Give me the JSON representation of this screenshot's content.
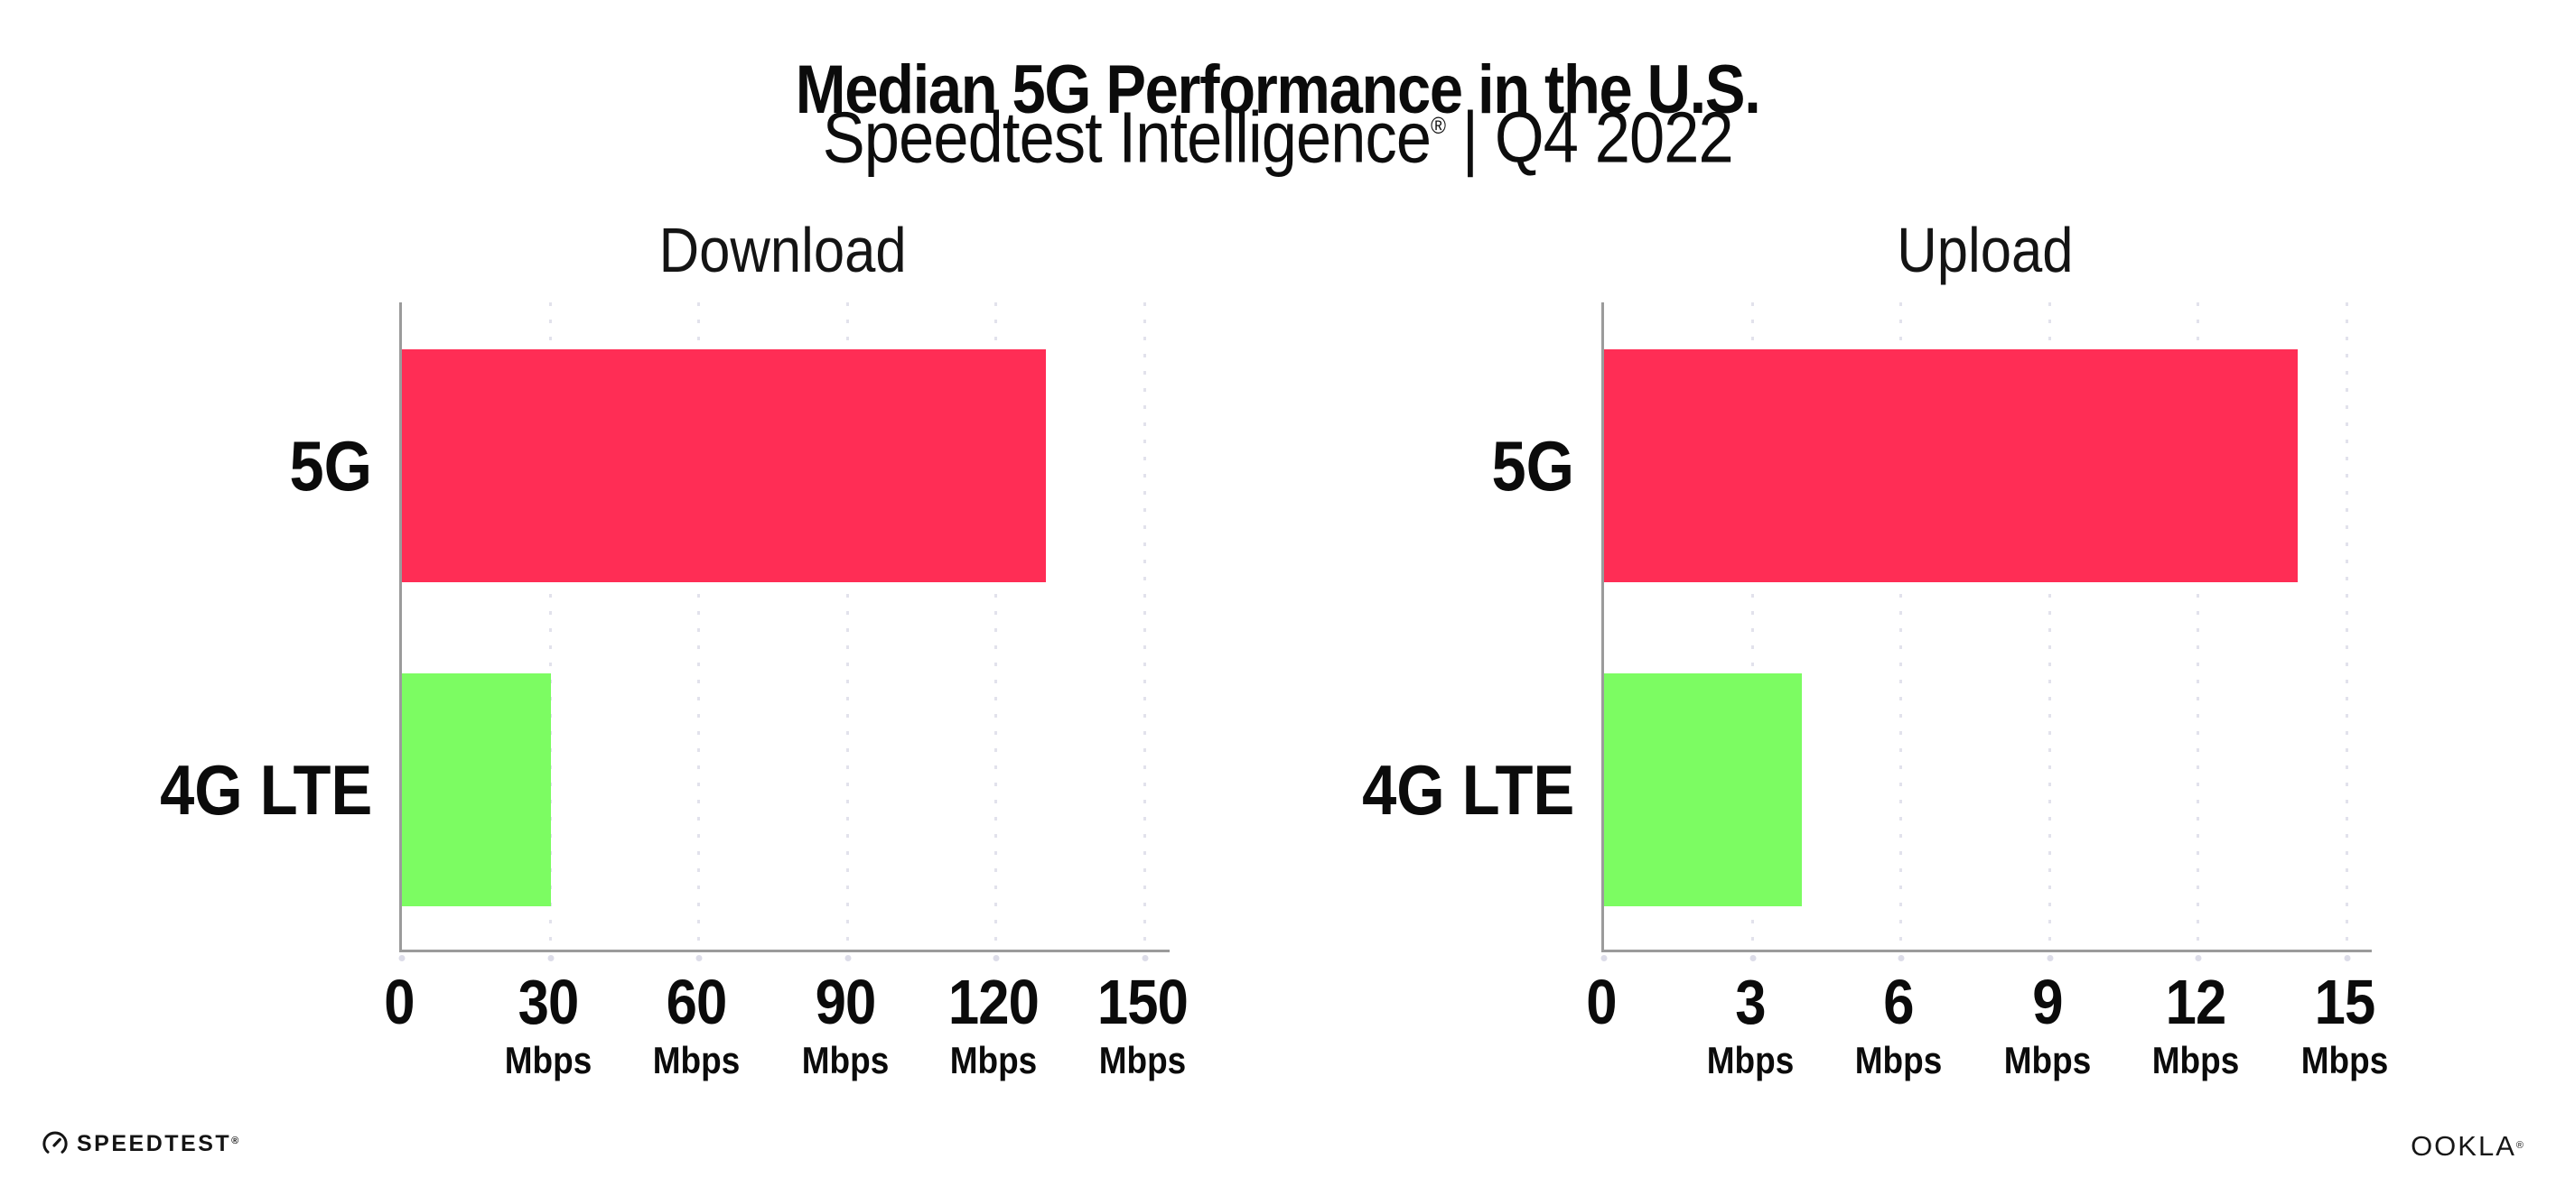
{
  "header": {
    "title": "Median 5G Performance in the U.S.",
    "subtitle_brand": "Speedtest Intelligence",
    "subtitle_reg": "®",
    "subtitle_rest": " | Q4 2022"
  },
  "chart_data": [
    {
      "type": "bar",
      "orientation": "horizontal",
      "title": "Download",
      "categories": [
        "5G",
        "4G LTE"
      ],
      "values": [
        130,
        30
      ],
      "unit": "Mbps",
      "xticks": [
        0,
        30,
        60,
        90,
        120,
        150
      ],
      "xlim": [
        0,
        155
      ],
      "bar_colors": [
        "#FF2D55",
        "#7CFC62"
      ],
      "grid": "dotted-vertical",
      "legend": "none"
    },
    {
      "type": "bar",
      "orientation": "horizontal",
      "title": "Upload",
      "categories": [
        "5G",
        "4G LTE"
      ],
      "values": [
        14,
        4
      ],
      "unit": "Mbps",
      "xticks": [
        0,
        3,
        6,
        9,
        12,
        15
      ],
      "xlim": [
        0,
        15.5
      ],
      "bar_colors": [
        "#FF2D55",
        "#7CFC62"
      ],
      "grid": "dotted-vertical",
      "legend": "none"
    }
  ],
  "footer": {
    "speedtest_label": "SPEEDTEST",
    "speedtest_mark": "®",
    "ookla_label": "OOKLA",
    "ookla_mark": "®"
  },
  "colors": {
    "bar_5g": "#FF2D55",
    "bar_4g_lte": "#7CFC62",
    "axis": "#9b9b9b",
    "gridline": "#e2e2ec",
    "text": "#0b0b0b"
  }
}
